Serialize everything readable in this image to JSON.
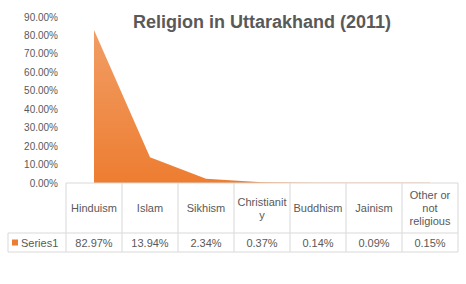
{
  "chart_data": {
    "type": "area",
    "title": "Religion in Uttarakhand (2011)",
    "categories": [
      "Hinduism",
      "Islam",
      "Sikhism",
      "Christianity",
      "Buddhism",
      "Jainism",
      "Other or not religious"
    ],
    "series": [
      {
        "name": "Series1",
        "color": "#ed7d31",
        "values": [
          82.97,
          13.94,
          2.34,
          0.37,
          0.14,
          0.09,
          0.15
        ],
        "value_labels": [
          "82.97%",
          "13.94%",
          "2.34%",
          "0.37%",
          "0.14%",
          "0.09%",
          "0.15%"
        ]
      }
    ],
    "ylim": [
      0,
      90
    ],
    "yticks": [
      {
        "value": 0,
        "label": "0.00%"
      },
      {
        "value": 10,
        "label": "10.00%"
      },
      {
        "value": 20,
        "label": "20.00%"
      },
      {
        "value": 30,
        "label": "30.00%"
      },
      {
        "value": 40,
        "label": "40.00%"
      },
      {
        "value": 50,
        "label": "50.00%"
      },
      {
        "value": 60,
        "label": "60.00%"
      },
      {
        "value": 70,
        "label": "70.00%"
      },
      {
        "value": 80,
        "label": "80.00%"
      },
      {
        "value": 90,
        "label": "90.00%"
      }
    ],
    "grid": false
  }
}
